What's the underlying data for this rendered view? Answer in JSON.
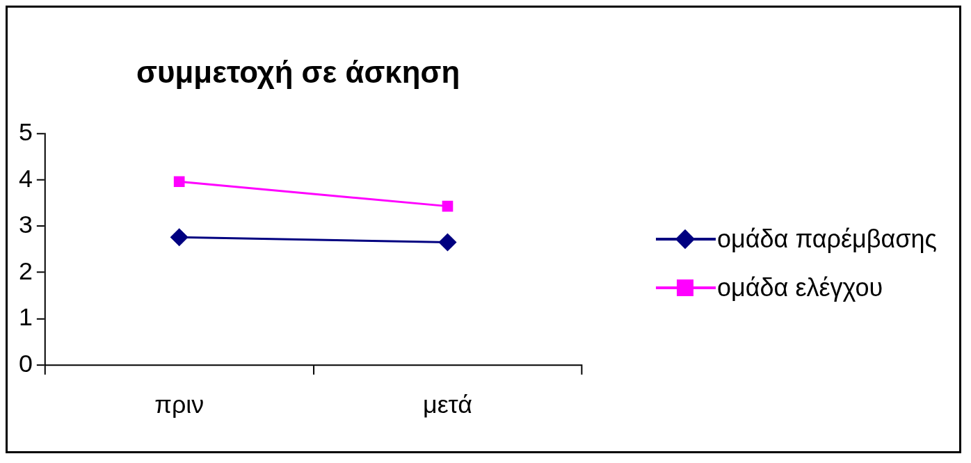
{
  "chart_data": {
    "type": "line",
    "title": "συμμετοχή σε άσκηση",
    "categories": [
      "πριν",
      "μετά"
    ],
    "series": [
      {
        "name": "ομάδα παρέμβασης",
        "color": "#000080",
        "values": [
          2.76,
          2.65
        ],
        "marker": "diamond"
      },
      {
        "name": "ομάδα ελέγχου",
        "color": "#ff00ff",
        "values": [
          3.96,
          3.43
        ],
        "marker": "square"
      }
    ],
    "ylim": [
      0,
      5
    ],
    "yticks": [
      0,
      1,
      2,
      3,
      4,
      5
    ],
    "grid": false,
    "legend": "right"
  }
}
